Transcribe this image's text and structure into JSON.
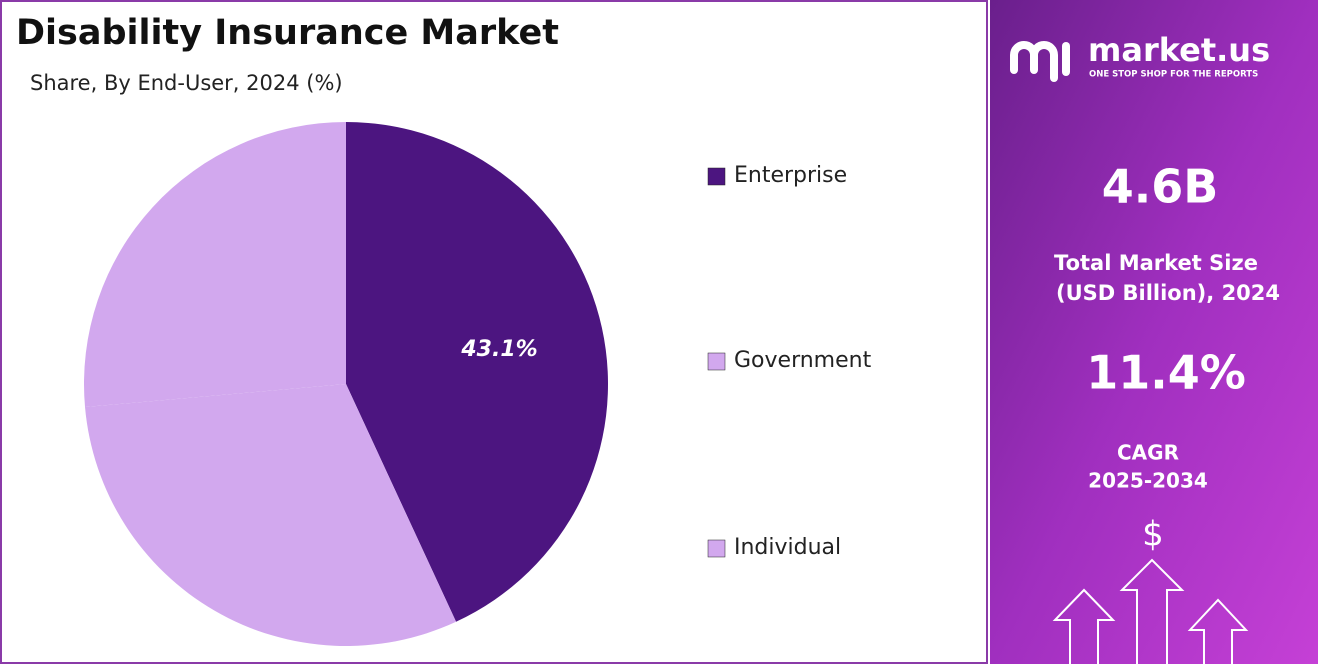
{
  "chart_data": {
    "type": "pie",
    "title": "Disability Insurance Market",
    "subtitle": "Share, By End-User, 2024 (%)",
    "categories": [
      "Enterprise",
      "Government",
      "Individual"
    ],
    "values": [
      43.1,
      30.5,
      26.4
    ],
    "value_labels": [
      "43.1%",
      null,
      null
    ],
    "colors": [
      "#4c1580",
      "#d2a8ee",
      "#d2a8ee"
    ],
    "legend": "right"
  },
  "panel": {
    "brand": "market.us",
    "tagline": "ONE STOP SHOP FOR THE REPORTS",
    "market_size": "4.6B",
    "market_size_label_1": "Total Market Size",
    "market_size_label_2": "(USD Billion), 2024",
    "cagr": "11.4%",
    "cagr_label_1": "CAGR",
    "cagr_label_2": "2025-2034",
    "icon_text": "$"
  }
}
